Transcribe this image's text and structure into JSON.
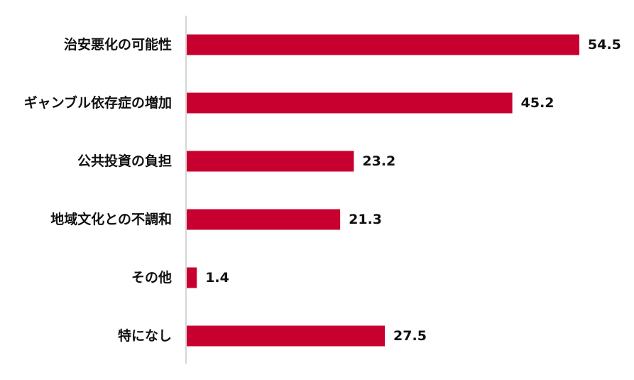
{
  "chart_data": {
    "type": "bar",
    "orientation": "horizontal",
    "categories": [
      "治安悪化の可能性",
      "ギャンブル依存症の増加",
      "公共投資の負担",
      "地域文化との不調和",
      "その他",
      "特になし"
    ],
    "values": [
      54.5,
      45.2,
      23.2,
      21.3,
      1.4,
      27.5
    ],
    "data_labels": [
      "54.5",
      "45.2",
      "23.2",
      "21.3",
      "1.4",
      "27.5"
    ],
    "bar_color": "#c8002f",
    "axis_color": "#c8c8c8",
    "xlim": [
      0,
      54.5
    ],
    "grid": false,
    "legend": "none"
  }
}
